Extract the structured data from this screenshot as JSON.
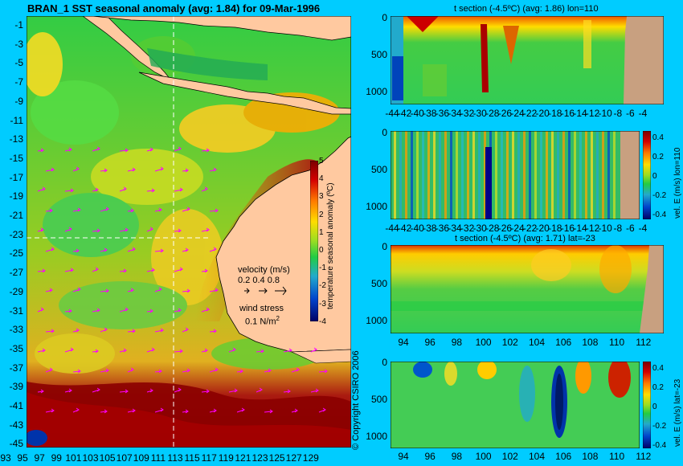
{
  "header": {
    "main_title": "BRAN_1 SST seasonal anomaly (avg: 1.84) for 09-Mar-1996"
  },
  "map": {
    "lat_ticks": [
      "-1",
      "-3",
      "-5",
      "-7",
      "-9",
      "-11",
      "-13",
      "-15",
      "-17",
      "-19",
      "-21",
      "-23",
      "-25",
      "-27",
      "-29",
      "-31",
      "-33",
      "-35",
      "-37",
      "-39",
      "-41",
      "-43",
      "-45"
    ],
    "lon_ticks": [
      "93",
      "95",
      "97",
      "99",
      "101",
      "103",
      "105",
      "107",
      "109",
      "111",
      "113",
      "115",
      "117",
      "119",
      "121",
      "123",
      "125",
      "127",
      "129"
    ],
    "velocity_label": "velocity (m/s)",
    "velocity_scale": "0.2 0.4 0.8",
    "wind_label": "wind stress",
    "wind_scale": "0.1 N/m",
    "wind_sup": "2",
    "colorbar_ticks": [
      "5",
      "4",
      "3",
      "2",
      "1",
      "0",
      "-1",
      "-2",
      "-3",
      "-4"
    ],
    "colorbar_label": "temperature seasonal anomaly (ºC)",
    "copyright": "© Copyright CSIRO 2006"
  },
  "panels": {
    "p1": {
      "title": "t section (-4.5ºC) (avg: 1.86) lon=110",
      "y_ticks": [
        "0",
        "500",
        "1000"
      ],
      "x_ticks": [
        "-44",
        "-42",
        "-40",
        "-38",
        "-36",
        "-34",
        "-32",
        "-30",
        "-28",
        "-26",
        "-24",
        "-22",
        "-20",
        "-18",
        "-16",
        "-14",
        "-12",
        "-10",
        "-8",
        "-6",
        "-4"
      ]
    },
    "p2": {
      "y_ticks": [
        "0",
        "500",
        "1000"
      ],
      "x_ticks": [
        "-44",
        "-42",
        "-40",
        "-38",
        "-36",
        "-34",
        "-32",
        "-30",
        "-28",
        "-26",
        "-24",
        "-22",
        "-20",
        "-18",
        "-16",
        "-14",
        "-12",
        "-10",
        "-8",
        "-6",
        "-4"
      ],
      "cbar_ticks": [
        "0.4",
        "0.2",
        "0",
        "-0.2",
        "-0.4"
      ],
      "cbar_label": "vel. E (m/s) lon=110"
    },
    "p3": {
      "title": "t section (-4.5ºC) (avg: 1.71) lat=-23",
      "y_ticks": [
        "0",
        "500",
        "1000"
      ],
      "x_ticks": [
        "94",
        "96",
        "98",
        "100",
        "102",
        "104",
        "106",
        "108",
        "110",
        "112"
      ]
    },
    "p4": {
      "y_ticks": [
        "0",
        "500",
        "1000"
      ],
      "x_ticks": [
        "94",
        "96",
        "98",
        "100",
        "102",
        "104",
        "106",
        "108",
        "110",
        "112"
      ],
      "cbar_ticks": [
        "0.4",
        "0.2",
        "0",
        "-0.2",
        "-0.4"
      ],
      "cbar_label": "vel. E (m/s) lat=-23"
    }
  },
  "colors": {
    "background": "#00ccff",
    "land": "#ffc9a0",
    "section_land": "#c8a080",
    "ocean_warm": "#8b0000",
    "ocean_mid": "#33cc33",
    "ocean_cool": "#0000aa",
    "vectors": "#ff00ff"
  },
  "chart_data": [
    {
      "type": "heatmap",
      "title": "BRAN_1 SST seasonal anomaly (avg: 1.84) for 09-Mar-1996",
      "xlabel": "",
      "ylabel": "",
      "x_range": [
        93,
        130
      ],
      "y_range": [
        -45,
        0
      ],
      "colorbar": {
        "label": "temperature seasonal anomaly (ºC)",
        "range": [
          -4,
          5
        ]
      },
      "annotations": [
        "velocity (m/s) 0.2 0.4 0.8",
        "wind stress 0.1 N/m2"
      ]
    },
    {
      "type": "heatmap",
      "title": "t section (-4.5ºC) (avg: 1.86) lon=110",
      "x_range": [
        -45,
        -3
      ],
      "y_range": [
        0,
        1050
      ]
    },
    {
      "type": "heatmap",
      "title": "",
      "x_range": [
        -45,
        -3
      ],
      "y_range": [
        0,
        1050
      ],
      "colorbar": {
        "label": "vel. E (m/s) lon=110",
        "range": [
          -0.5,
          0.5
        ]
      }
    },
    {
      "type": "heatmap",
      "title": "t section (-4.5ºC) (avg: 1.71) lat=-23",
      "x_range": [
        93,
        113.5
      ],
      "y_range": [
        0,
        1050
      ]
    },
    {
      "type": "heatmap",
      "title": "",
      "x_range": [
        93,
        113.5
      ],
      "y_range": [
        0,
        1050
      ],
      "colorbar": {
        "label": "vel. E (m/s) lat=-23",
        "range": [
          -0.5,
          0.5
        ]
      }
    }
  ]
}
